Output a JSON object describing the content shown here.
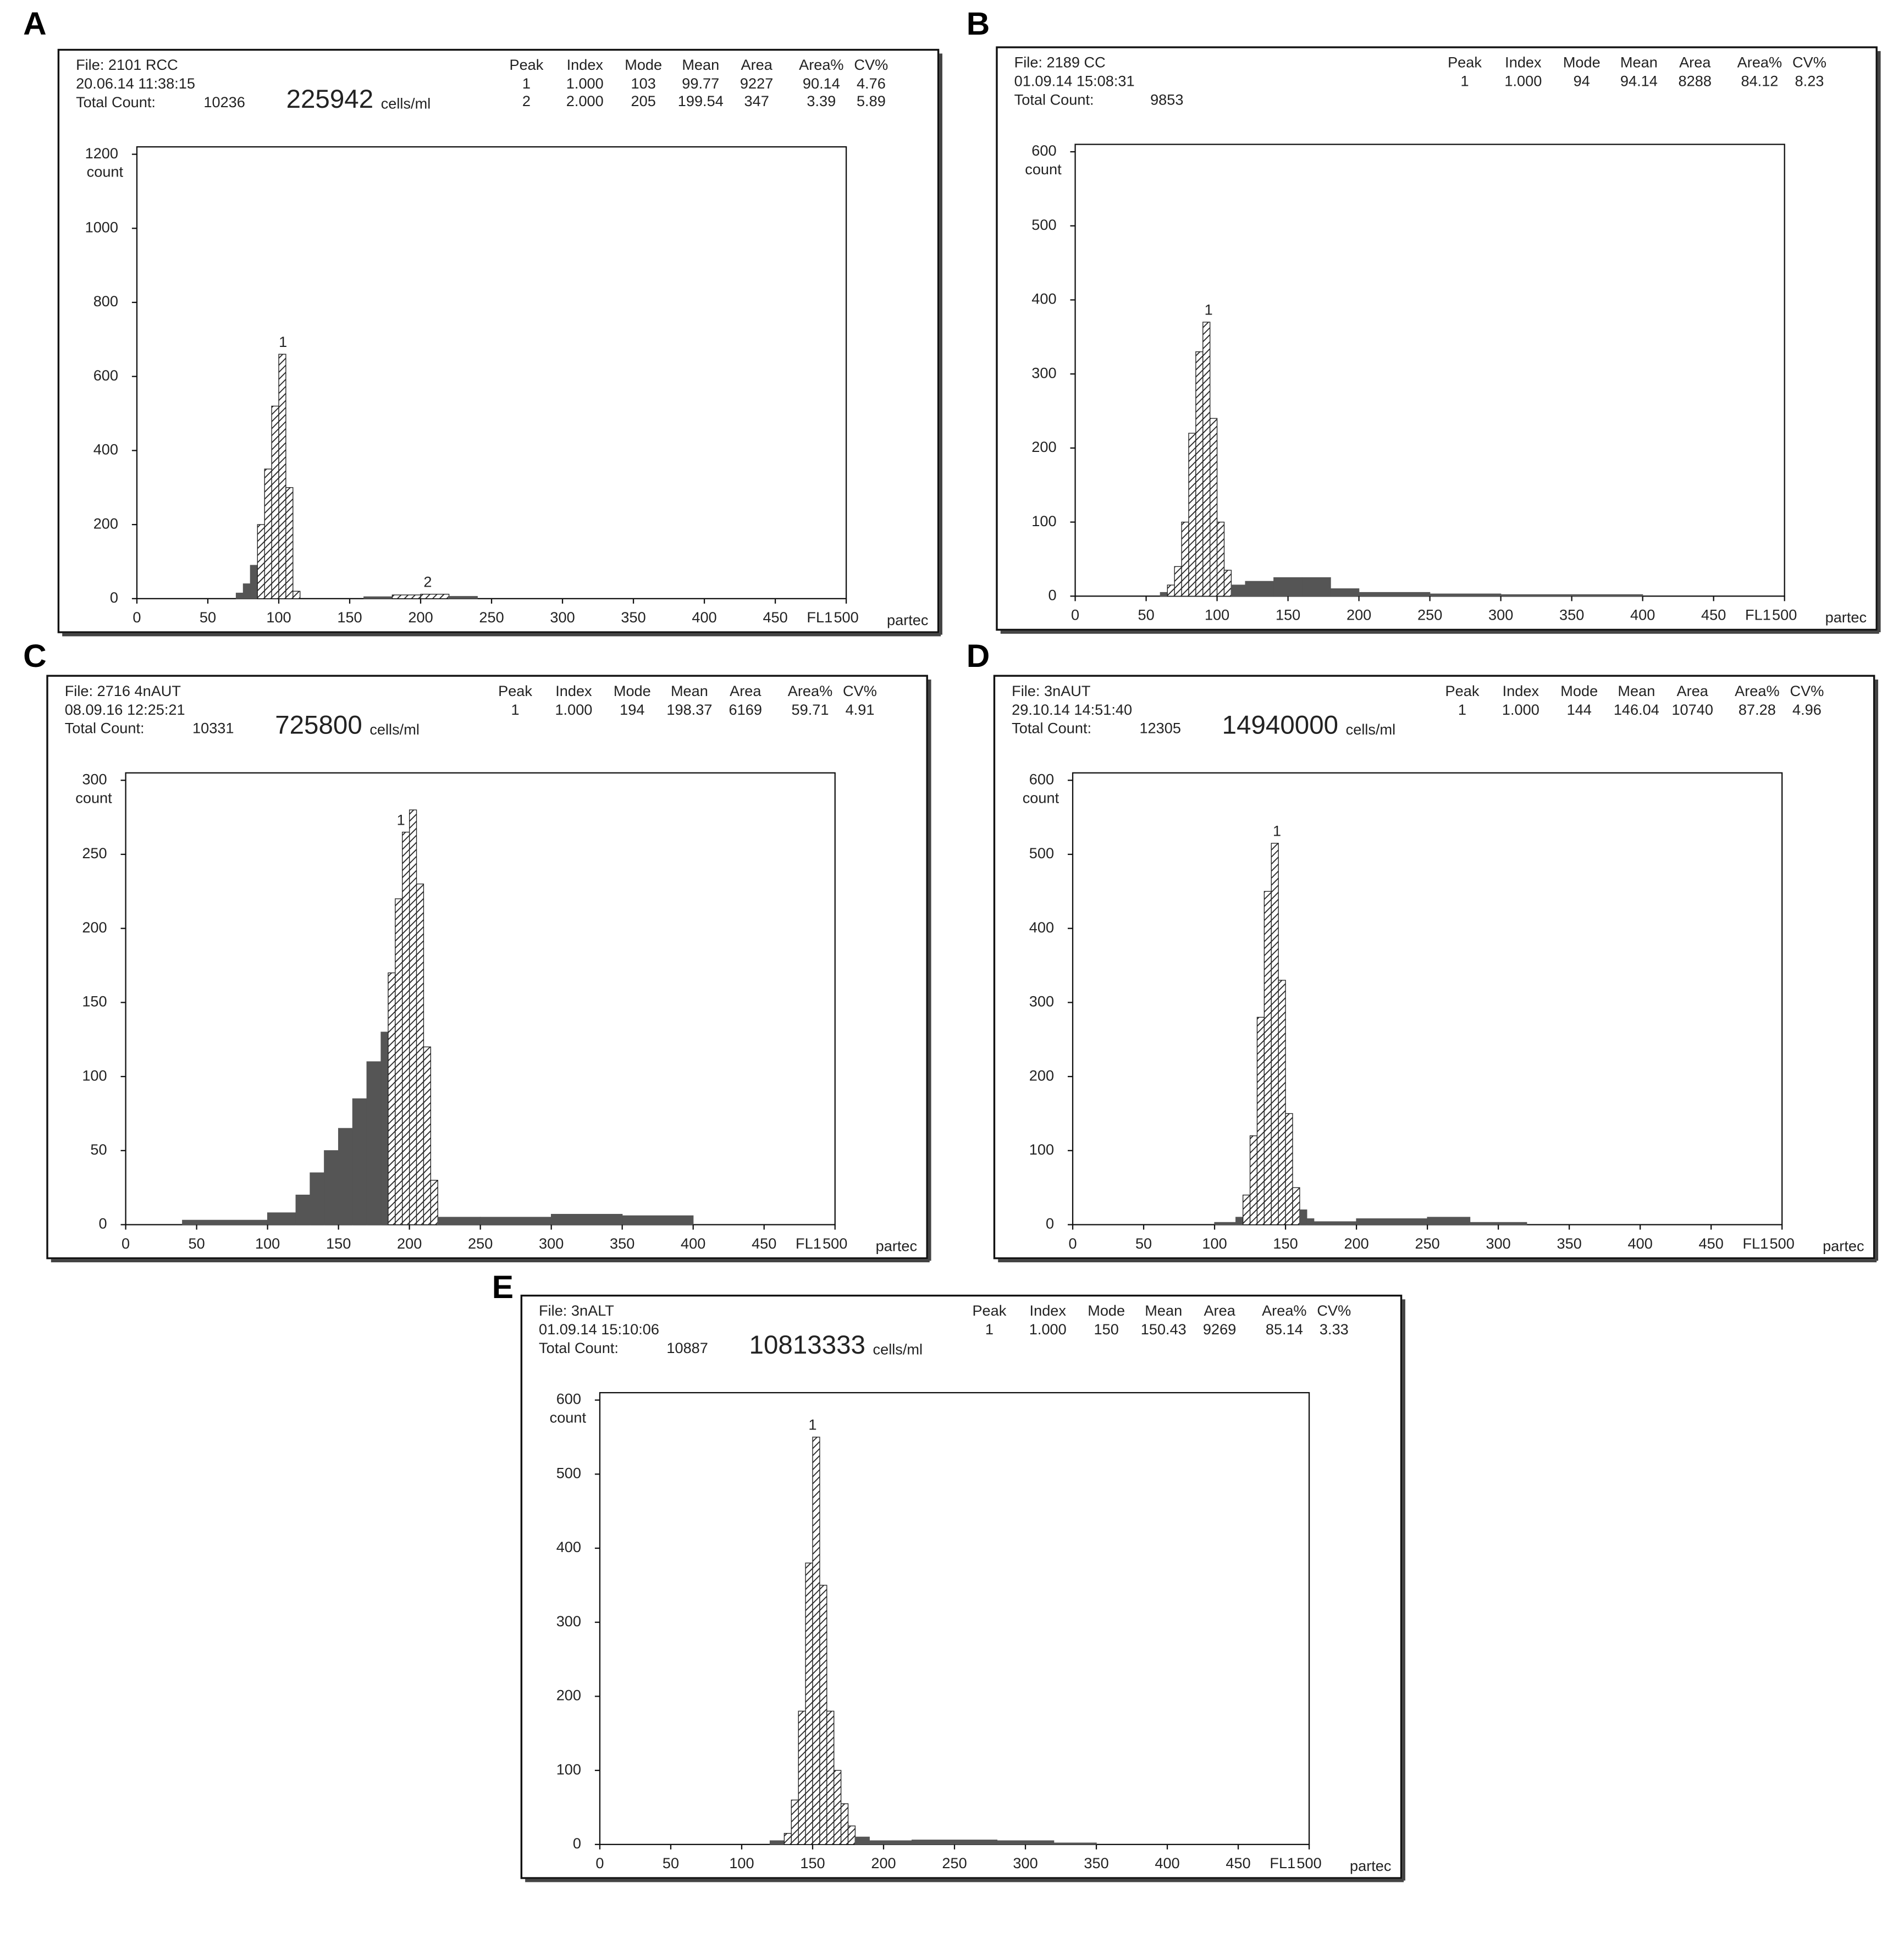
{
  "chart_data": [
    {
      "type": "histogram",
      "panel_label": "A",
      "file": "File: 2101 RCC",
      "timestamp": "20.06.14 11:38:15",
      "total_count_label": "Total Count:",
      "total_count": 10236,
      "concentration": 225942,
      "concentration_unit": "cells/ml",
      "stats_columns": [
        "Peak",
        "Index",
        "Mode",
        "Mean",
        "Area",
        "Area%",
        "CV%"
      ],
      "stats_rows": [
        [
          1,
          "1.000",
          103,
          99.77,
          9227,
          90.14,
          4.76
        ],
        [
          2,
          "2.000",
          205,
          199.54,
          347,
          3.39,
          5.89
        ]
      ],
      "y_label": "count",
      "x_label": "FL1",
      "brand": "partec",
      "xlim": [
        0,
        500
      ],
      "xticks": [
        0,
        50,
        100,
        150,
        200,
        250,
        300,
        350,
        400,
        450,
        500
      ],
      "ylim": [
        0,
        1220
      ],
      "yticks": [
        0,
        200,
        400,
        600,
        800,
        1000,
        1200
      ],
      "bins": [
        0,
        70,
        75,
        80,
        85,
        90,
        95,
        100,
        105,
        110,
        115,
        160,
        180,
        200,
        220,
        240,
        500
      ],
      "counts": [
        0,
        15,
        40,
        90,
        200,
        350,
        520,
        660,
        300,
        20,
        0,
        5,
        10,
        12,
        6,
        0
      ],
      "peak_regions": [
        [
          85,
          115
        ],
        [
          185,
          225
        ]
      ],
      "peak_fill": "hatch",
      "color": "#555555"
    },
    {
      "type": "histogram",
      "panel_label": "B",
      "file": "File: 2189  CC",
      "timestamp": "01.09.14 15:08:31",
      "total_count_label": "Total Count:",
      "total_count": 9853,
      "stats_columns": [
        "Peak",
        "Index",
        "Mode",
        "Mean",
        "Area",
        "Area%",
        "CV%"
      ],
      "stats_rows": [
        [
          1,
          "1.000",
          94,
          94.14,
          8288,
          84.12,
          8.23
        ]
      ],
      "y_label": "count",
      "x_label": "FL1",
      "brand": "partec",
      "xlim": [
        0,
        500
      ],
      "xticks": [
        0,
        50,
        100,
        150,
        200,
        250,
        300,
        350,
        400,
        450,
        500
      ],
      "ylim": [
        0,
        610
      ],
      "yticks": [
        0,
        100,
        200,
        300,
        400,
        500,
        600
      ],
      "bins": [
        0,
        60,
        65,
        70,
        75,
        80,
        85,
        90,
        95,
        100,
        105,
        110,
        120,
        140,
        160,
        180,
        200,
        250,
        300,
        400,
        500
      ],
      "counts": [
        0,
        5,
        15,
        40,
        100,
        220,
        330,
        370,
        240,
        100,
        35,
        15,
        20,
        25,
        25,
        10,
        5,
        3,
        2,
        0
      ],
      "peak_regions": [
        [
          65,
          110
        ]
      ],
      "peak_fill": "hatch",
      "color": "#555555"
    },
    {
      "type": "histogram",
      "panel_label": "C",
      "file": "File: 2716 4nAUT",
      "timestamp": "08.09.16  12:25:21",
      "total_count_label": "Total Count:",
      "total_count": 10331,
      "concentration": 725800,
      "concentration_unit": "cells/ml",
      "stats_columns": [
        "Peak",
        "Index",
        "Mode",
        "Mean",
        "Area",
        "Area%",
        "CV%"
      ],
      "stats_rows": [
        [
          1,
          "1.000",
          194,
          198.37,
          6169,
          59.71,
          4.91
        ]
      ],
      "y_label": "count",
      "x_label": "FL1",
      "brand": "partec",
      "xlim": [
        0,
        500
      ],
      "xticks": [
        0,
        50,
        100,
        150,
        200,
        250,
        300,
        350,
        400,
        450,
        500
      ],
      "ylim": [
        0,
        305
      ],
      "yticks": [
        0,
        50,
        100,
        150,
        200,
        250,
        300
      ],
      "bins": [
        0,
        40,
        100,
        120,
        130,
        140,
        150,
        160,
        170,
        180,
        185,
        190,
        195,
        200,
        205,
        210,
        215,
        220,
        250,
        300,
        350,
        400,
        500
      ],
      "counts": [
        0,
        3,
        8,
        20,
        35,
        50,
        65,
        85,
        110,
        130,
        170,
        220,
        265,
        280,
        230,
        120,
        30,
        5,
        5,
        7,
        6,
        0
      ],
      "peak_regions": [
        [
          185,
          220
        ]
      ],
      "peak_fill": "hatch",
      "color": "#555555"
    },
    {
      "type": "histogram",
      "panel_label": "D",
      "file": "File: 3nAUT",
      "timestamp": "29.10.14  14:51:40",
      "total_count_label": "Total Count:",
      "total_count": 12305,
      "concentration": 14940000,
      "concentration_unit": "cells/ml",
      "stats_columns": [
        "Peak",
        "Index",
        "Mode",
        "Mean",
        "Area",
        "Area%",
        "CV%"
      ],
      "stats_rows": [
        [
          1,
          "1.000",
          144,
          146.04,
          10740,
          87.28,
          4.96
        ]
      ],
      "y_label": "count",
      "x_label": "FL1",
      "brand": "partec",
      "xlim": [
        0,
        500
      ],
      "xticks": [
        0,
        50,
        100,
        150,
        200,
        250,
        300,
        350,
        400,
        450,
        500
      ],
      "ylim": [
        0,
        610
      ],
      "yticks": [
        0,
        100,
        200,
        300,
        400,
        500,
        600
      ],
      "bins": [
        0,
        100,
        115,
        120,
        125,
        130,
        135,
        140,
        145,
        150,
        155,
        160,
        165,
        170,
        200,
        250,
        280,
        320,
        500
      ],
      "counts": [
        0,
        3,
        10,
        40,
        120,
        280,
        450,
        515,
        330,
        150,
        50,
        20,
        8,
        4,
        8,
        10,
        3,
        0
      ],
      "peak_regions": [
        [
          120,
          160
        ]
      ],
      "peak_fill": "hatch",
      "color": "#555555"
    },
    {
      "type": "histogram",
      "panel_label": "E",
      "file": "File: 3nALT",
      "timestamp": "01.09.14  15:10:06",
      "total_count_label": "Total Count:",
      "total_count": 10887,
      "concentration": 10813333,
      "concentration_unit": "cells/ml",
      "stats_columns": [
        "Peak",
        "Index",
        "Mode",
        "Mean",
        "Area",
        "Area%",
        "CV%"
      ],
      "stats_rows": [
        [
          1,
          "1.000",
          150,
          150.43,
          9269,
          85.14,
          3.33
        ]
      ],
      "y_label": "count",
      "x_label": "FL1",
      "brand": "partec",
      "xlim": [
        0,
        500
      ],
      "xticks": [
        0,
        50,
        100,
        150,
        200,
        250,
        300,
        350,
        400,
        450,
        500
      ],
      "ylim": [
        0,
        610
      ],
      "yticks": [
        0,
        100,
        200,
        300,
        400,
        500,
        600
      ],
      "bins": [
        0,
        120,
        130,
        135,
        140,
        145,
        150,
        155,
        160,
        165,
        170,
        175,
        180,
        190,
        220,
        280,
        320,
        350,
        500
      ],
      "counts": [
        0,
        5,
        15,
        60,
        180,
        380,
        550,
        350,
        180,
        100,
        55,
        25,
        10,
        5,
        6,
        5,
        2,
        0
      ],
      "peak_regions": [
        [
          130,
          180
        ]
      ],
      "peak_fill": "hatch",
      "color": "#555555"
    }
  ]
}
